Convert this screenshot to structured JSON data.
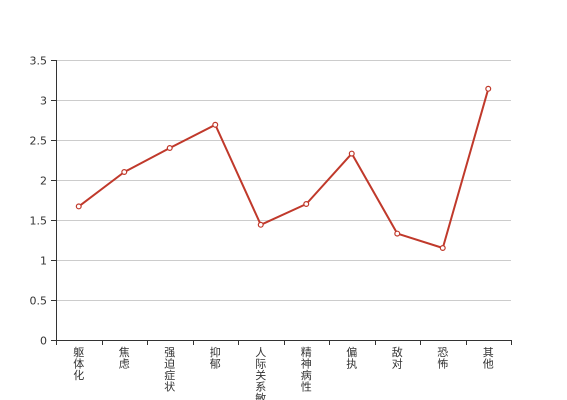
{
  "chart_data": {
    "type": "line",
    "categories": [
      "躯体化",
      "焦虑",
      "强迫症状",
      "抑郁",
      "人际关系敏感",
      "精神病性",
      "偏执",
      "敌对",
      "恐怖",
      "其他"
    ],
    "series": [
      {
        "values": [
          1.67,
          2.1,
          2.4,
          2.69,
          1.44,
          1.7,
          2.33,
          1.33,
          1.15,
          3.14
        ],
        "color": "#c0392b"
      }
    ],
    "y_ticks": [
      "0",
      "0.5",
      "1",
      "1.5",
      "2",
      "2.5",
      "3",
      "3.5"
    ],
    "ylim": [
      0,
      3.5
    ],
    "grid": true,
    "legend": "none"
  }
}
